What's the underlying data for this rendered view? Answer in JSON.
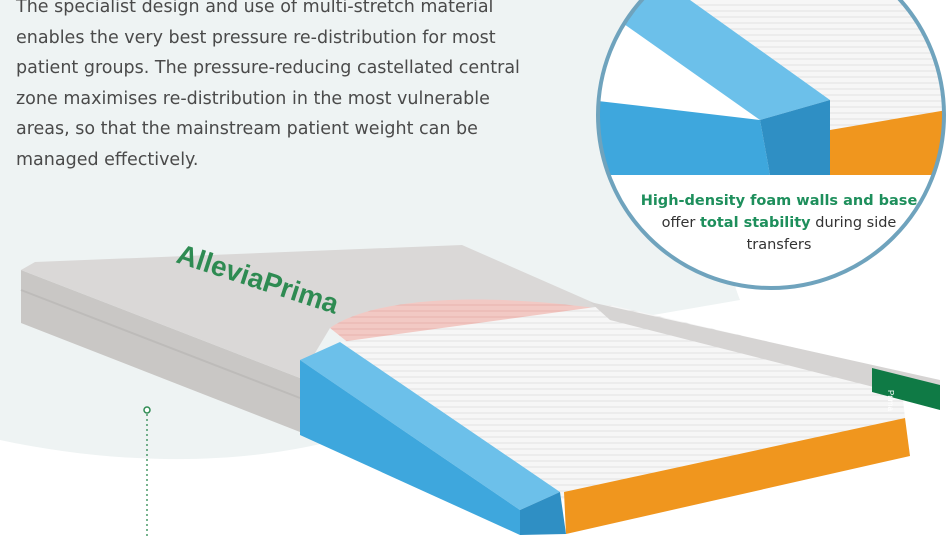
{
  "intro": {
    "lines": [
      "The specialist design and use of multi-stretch material",
      "enables the very best pressure re-distribution for most",
      "patient groups. The pressure-reducing castellated central",
      "zone maximises re-distribution in the most vulnerable",
      "areas, so that the mainstream patient weight can be",
      "managed effectively."
    ]
  },
  "callout": {
    "highlight_1": "High-density foam walls and base",
    "text_1": " offer ",
    "highlight_2": "total stability",
    "text_2": " during side transfers"
  },
  "product": {
    "brand_label": "AlleviaPrima",
    "end_tag_label": "Prima"
  },
  "colors": {
    "accent_green": "#1e8f5c",
    "circle_border": "#6fa3bd",
    "foam_blue": "#4aaee0",
    "base_orange": "#f0961e",
    "cover_grey": "#d7d5d4",
    "background_tint": "#eef3f3"
  }
}
